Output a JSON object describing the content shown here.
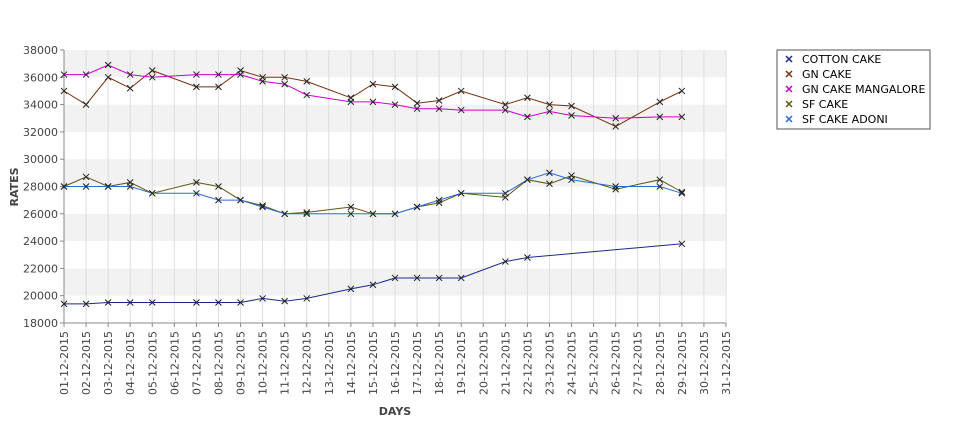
{
  "chart_data": {
    "type": "line",
    "xlabel": "DAYS",
    "ylabel": "RATES",
    "ylim": [
      18000,
      38000
    ],
    "yticks": [
      18000,
      20000,
      22000,
      24000,
      26000,
      28000,
      30000,
      32000,
      34000,
      36000,
      38000
    ],
    "categories": [
      "01-12-2015",
      "02-12-2015",
      "03-12-2015",
      "04-12-2015",
      "05-12-2015",
      "06-12-2015",
      "07-12-2015",
      "08-12-2015",
      "09-12-2015",
      "10-12-2015",
      "11-12-2015",
      "12-12-2015",
      "13-12-2015",
      "14-12-2015",
      "15-12-2015",
      "16-12-2015",
      "17-12-2015",
      "18-12-2015",
      "19-12-2015",
      "20-12-2015",
      "21-12-2015",
      "22-12-2015",
      "23-12-2015",
      "24-12-2015",
      "25-12-2015",
      "26-12-2015",
      "27-12-2015",
      "28-12-2015",
      "29-12-2015",
      "30-12-2015",
      "31-12-2015"
    ],
    "grid": true,
    "legend": "right",
    "series": [
      {
        "name": "COTTON CAKE",
        "color": "#1a2a8a",
        "values": [
          19400,
          19400,
          19500,
          19500,
          19500,
          null,
          19500,
          19500,
          19500,
          19800,
          19600,
          19800,
          null,
          20500,
          20800,
          21300,
          21300,
          21300,
          21300,
          null,
          22500,
          22800,
          null,
          null,
          null,
          null,
          null,
          null,
          23800,
          null,
          null
        ]
      },
      {
        "name": "GN CAKE",
        "color": "#7a2f0a",
        "values": [
          35000,
          34000,
          36000,
          35200,
          36500,
          null,
          35300,
          35300,
          36500,
          36000,
          36000,
          35700,
          null,
          34500,
          35500,
          35300,
          34100,
          34300,
          35000,
          null,
          34000,
          34500,
          34000,
          33900,
          null,
          32400,
          null,
          34200,
          35000,
          null,
          null
        ]
      },
      {
        "name": "GN CAKE MANGALORE",
        "color": "#cc00cc",
        "values": [
          36200,
          36200,
          36900,
          36200,
          36000,
          null,
          36200,
          36200,
          36200,
          35700,
          35500,
          34700,
          null,
          34200,
          34200,
          34000,
          33700,
          33700,
          33600,
          null,
          33600,
          33100,
          33500,
          33200,
          null,
          33000,
          null,
          33100,
          33100,
          null,
          null
        ]
      },
      {
        "name": "SF CAKE",
        "color": "#5a5a10",
        "values": [
          28000,
          28700,
          28000,
          28300,
          27500,
          null,
          28300,
          28000,
          27000,
          26600,
          26000,
          26100,
          null,
          26500,
          26000,
          26000,
          26500,
          26800,
          27500,
          null,
          27200,
          28500,
          28200,
          28800,
          null,
          27800,
          null,
          28500,
          27600,
          null,
          null
        ]
      },
      {
        "name": "SF CAKE ADONI",
        "color": "#2a6ad8",
        "values": [
          28000,
          28000,
          28000,
          28000,
          27500,
          null,
          27500,
          27000,
          27000,
          26500,
          26000,
          26000,
          null,
          26000,
          26000,
          26000,
          26500,
          27000,
          27500,
          null,
          27500,
          28500,
          29000,
          28500,
          null,
          28000,
          null,
          28000,
          27500,
          null,
          null
        ]
      }
    ]
  }
}
